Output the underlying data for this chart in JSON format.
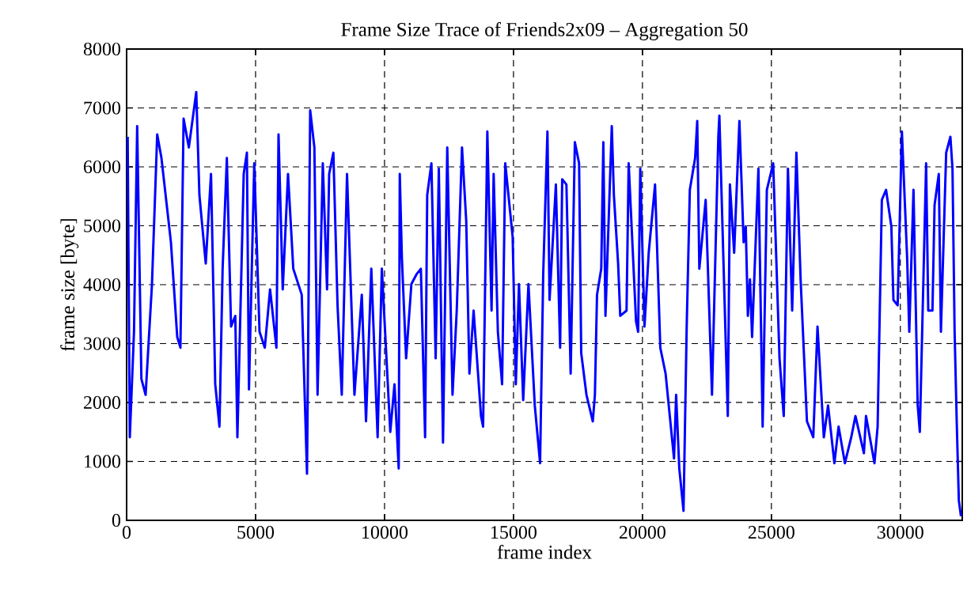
{
  "chart_data": {
    "type": "line",
    "title": "Frame Size Trace of Friends2x09 – Aggregation 50",
    "xlabel": "frame index",
    "ylabel": "frame size [byte]",
    "xlim": [
      0,
      32400
    ],
    "ylim": [
      0,
      8000
    ],
    "xticks": [
      0,
      5000,
      10000,
      15000,
      20000,
      25000,
      30000
    ],
    "yticks": [
      0,
      1000,
      2000,
      3000,
      4000,
      5000,
      6000,
      7000,
      8000
    ],
    "grid": true,
    "marker": "none",
    "line_style": "solid",
    "series": [
      {
        "color": "#0000ff",
        "x": [
          40,
          123,
          286,
          409,
          573,
          736,
          982,
          1186,
          1350,
          1718,
          1963,
          2086,
          2209,
          2413,
          2700,
          2822,
          3068,
          3272,
          3436,
          3600,
          3722,
          3886,
          4049,
          4213,
          4295,
          4540,
          4663,
          4744,
          4949,
          5153,
          5358,
          5562,
          5808,
          5890,
          6053,
          6258,
          6462,
          6789,
          6994,
          7117,
          7280,
          7403,
          7607,
          7771,
          7853,
          8016,
          8178,
          8342,
          8546,
          8833,
          9119,
          9282,
          9487,
          9732,
          9896,
          10223,
          10387,
          10550,
          10591,
          10673,
          10837,
          11041,
          11246,
          11409,
          11573,
          11655,
          11818,
          11982,
          12105,
          12268,
          12432,
          12636,
          12800,
          13004,
          13168,
          13291,
          13454,
          13741,
          13822,
          13986,
          14150,
          14231,
          14395,
          14559,
          14681,
          14968,
          15090,
          15213,
          15377,
          15581,
          15826,
          16031,
          16153,
          16317,
          16399,
          16644,
          16808,
          16889,
          17053,
          17217,
          17380,
          17544,
          17626,
          17830,
          18075,
          18157,
          18239,
          18403,
          18484,
          18566,
          18812,
          18893,
          19057,
          19139,
          19384,
          19466,
          19752,
          19834,
          19916,
          20080,
          20243,
          20489,
          20693,
          20898,
          21061,
          21225,
          21307,
          21429,
          21593,
          21716,
          21838,
          22043,
          22125,
          22206,
          22452,
          22697,
          22942,
          22983,
          23310,
          23392,
          23556,
          23760,
          23924,
          24006,
          24088,
          24170,
          24252,
          24497,
          24661,
          24824,
          25070,
          25315,
          25479,
          25642,
          25806,
          25970,
          26133,
          26379,
          26624,
          26788,
          27033,
          27197,
          27442,
          27606,
          27851,
          28096,
          28260,
          28587,
          28669,
          28996,
          29119,
          29283,
          29446,
          29651,
          29732,
          29896,
          30060,
          30264,
          30346,
          30510,
          30673,
          30755,
          31000,
          31082,
          31245,
          31327,
          31491,
          31573,
          31777,
          31941,
          32022,
          32104,
          32186,
          32268,
          32350
        ],
        "values": [
          6510,
          1410,
          3200,
          6690,
          2400,
          2130,
          4000,
          6550,
          6150,
          4720,
          3110,
          2930,
          6820,
          6330,
          7270,
          5520,
          4360,
          5880,
          2310,
          1590,
          4270,
          6150,
          3290,
          3470,
          1410,
          5880,
          6240,
          2220,
          6060,
          3200,
          2930,
          3920,
          2930,
          6550,
          3920,
          5880,
          4270,
          3830,
          790,
          6960,
          6330,
          2130,
          6060,
          3920,
          5880,
          6240,
          3650,
          2130,
          5880,
          2130,
          3830,
          1680,
          4270,
          1410,
          4270,
          1500,
          2310,
          880,
          5880,
          4450,
          2750,
          4010,
          4180,
          4270,
          1410,
          5520,
          6060,
          2750,
          5970,
          1320,
          6330,
          2130,
          3560,
          6330,
          5080,
          2490,
          3560,
          1770,
          1590,
          6600,
          3560,
          5880,
          3200,
          2310,
          6060,
          4810,
          2310,
          4010,
          2040,
          4010,
          1950,
          970,
          4180,
          6600,
          3740,
          5700,
          2930,
          5790,
          5700,
          2490,
          6420,
          6060,
          2840,
          2130,
          1680,
          2130,
          3830,
          4270,
          6420,
          3470,
          6690,
          5520,
          4360,
          3470,
          3560,
          6060,
          3380,
          3200,
          5970,
          3290,
          4540,
          5700,
          2930,
          2490,
          1770,
          1050,
          2130,
          880,
          160,
          3290,
          5610,
          6150,
          6780,
          4270,
          5440,
          2130,
          6510,
          6870,
          1770,
          5700,
          4540,
          6780,
          4720,
          4990,
          3470,
          4090,
          3110,
          5970,
          1590,
          5610,
          6060,
          2750,
          1770,
          5970,
          3560,
          6240,
          4090,
          1680,
          1410,
          3290,
          1410,
          1950,
          970,
          1590,
          970,
          1410,
          1770,
          1140,
          1770,
          970,
          1590,
          5440,
          5610,
          4990,
          3740,
          3650,
          6600,
          4450,
          3200,
          5610,
          1950,
          1500,
          6060,
          3560,
          3560,
          5350,
          5880,
          3200,
          6240,
          6510,
          5970,
          3200,
          1680,
          340,
          70
        ]
      }
    ]
  }
}
